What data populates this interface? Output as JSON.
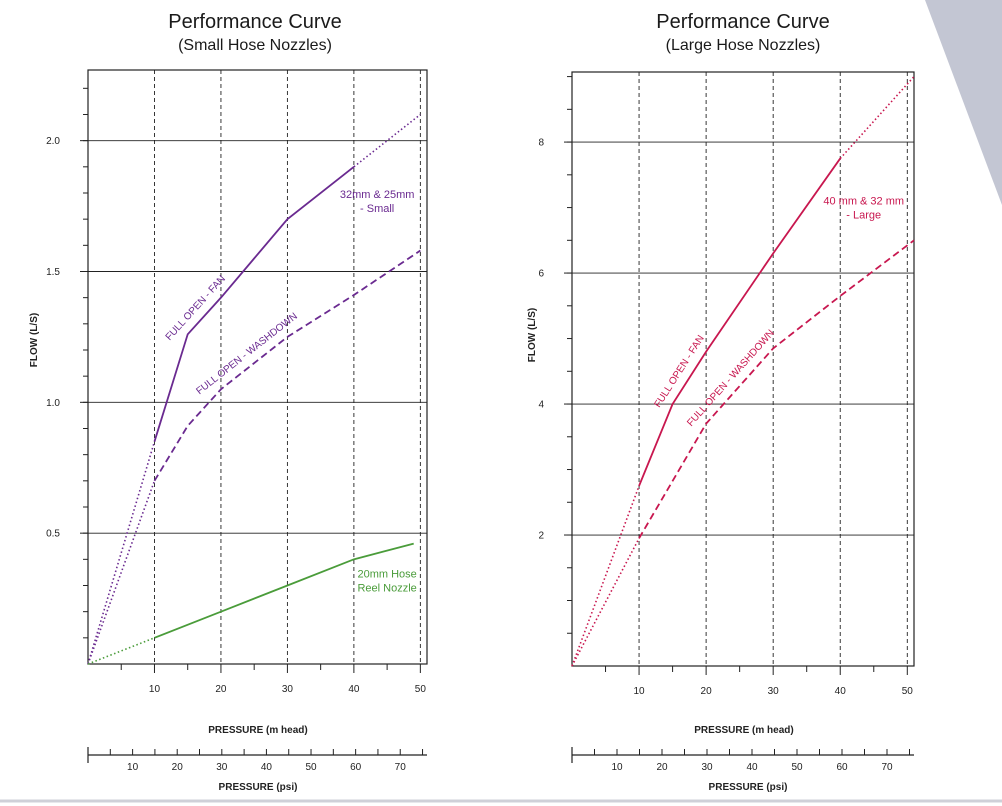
{
  "colors": {
    "purple": "#6a2a90",
    "green": "#4a9c3a",
    "crimson": "#c8174f",
    "corner": "#c3c6d3"
  },
  "chart_data": [
    {
      "type": "line",
      "title": "Performance Curve",
      "subtitle": "(Small Hose Nozzles)",
      "xlabel": "PRESSURE (m head)",
      "ylabel": "FLOW (L/S)",
      "xlim": [
        0,
        51
      ],
      "ylim": [
        0,
        2.27
      ],
      "x_ticks": [
        10,
        20,
        30,
        40,
        50
      ],
      "x_tick_labels": [
        "10",
        "20",
        "30",
        "40",
        "50"
      ],
      "y_ticks": [
        0.5,
        1.0,
        1.5,
        2.0
      ],
      "y_tick_labels": [
        "0.5",
        "1.0",
        "1.5",
        "2.0"
      ],
      "y_minor_step": 0.1,
      "secondary_xlabel": "PRESSURE (psi)",
      "secondary_x_ticks": [
        10,
        20,
        30,
        40,
        50,
        60,
        70
      ],
      "secondary_x_tick_labels": [
        "10",
        "20",
        "30",
        "40",
        "50",
        "60",
        "70"
      ],
      "secondary_xlim": [
        0,
        76
      ],
      "grid": true,
      "series": [
        {
          "color": "purple",
          "style": "solid",
          "label_text": "FULL OPEN - FAN",
          "x": [
            10,
            15,
            20,
            30,
            40
          ],
          "y": [
            0.85,
            1.26,
            1.4,
            1.7,
            1.9
          ],
          "ext_before": {
            "x": [
              0,
              10
            ],
            "y": [
              0,
              0.85
            ]
          },
          "ext_after": {
            "x": [
              40,
              50
            ],
            "y": [
              1.9,
              2.1
            ]
          }
        },
        {
          "color": "purple",
          "style": "dashed",
          "label_text": "FULL OPEN - WASHDOWN",
          "x": [
            10,
            15,
            20,
            30,
            40,
            50
          ],
          "y": [
            0.7,
            0.91,
            1.05,
            1.25,
            1.41,
            1.58
          ],
          "ext_before": {
            "x": [
              0,
              10
            ],
            "y": [
              0,
              0.7
            ]
          }
        },
        {
          "color": "green",
          "style": "solid",
          "x": [
            10,
            20,
            30,
            40,
            49
          ],
          "y": [
            0.1,
            0.2,
            0.3,
            0.4,
            0.46
          ],
          "ext_before": {
            "x": [
              0,
              10
            ],
            "y": [
              0,
              0.1
            ]
          }
        }
      ],
      "annotations": [
        {
          "lines": [
            "32mm & 25mm",
            "- Small"
          ],
          "color": "purple",
          "x": 43.5,
          "y": 1.78
        },
        {
          "lines": [
            "20mm Hose",
            "Reel Nozzle"
          ],
          "color": "green",
          "x": 45,
          "y": 0.33
        }
      ]
    },
    {
      "type": "line",
      "title": "Performance Curve",
      "subtitle": "(Large Hose Nozzles)",
      "xlabel": "PRESSURE (m head)",
      "ylabel": "FLOW (L/S)",
      "xlim": [
        0,
        51
      ],
      "ylim": [
        0,
        9.07
      ],
      "x_ticks": [
        10,
        20,
        30,
        40,
        50
      ],
      "x_tick_labels": [
        "10",
        "20",
        "30",
        "40",
        "50"
      ],
      "y_ticks": [
        2,
        4,
        6,
        8
      ],
      "y_tick_labels": [
        "2",
        "4",
        "6",
        "8"
      ],
      "y_minor_step": 0.5,
      "secondary_xlabel": "PRESSURE (psi)",
      "secondary_x_ticks": [
        10,
        20,
        30,
        40,
        50,
        60,
        70
      ],
      "secondary_x_tick_labels": [
        "10",
        "20",
        "30",
        "40",
        "50",
        "60",
        "70"
      ],
      "secondary_xlim": [
        0,
        76
      ],
      "grid": true,
      "series": [
        {
          "color": "crimson",
          "style": "solid",
          "label_text": "FULL OPEN - FAN",
          "x": [
            10,
            15,
            20,
            30,
            40
          ],
          "y": [
            2.75,
            4.0,
            4.8,
            6.3,
            7.75
          ],
          "ext_before": {
            "x": [
              0,
              10
            ],
            "y": [
              0,
              2.75
            ]
          },
          "ext_after": {
            "x": [
              40,
              51
            ],
            "y": [
              7.75,
              9.0
            ]
          }
        },
        {
          "color": "crimson",
          "style": "dashed",
          "label_text": "FULL OPEN - WASHDOWN",
          "x": [
            10,
            20,
            30,
            40,
            51
          ],
          "y": [
            1.95,
            3.7,
            4.85,
            5.65,
            6.5
          ],
          "ext_before": {
            "x": [
              0,
              10
            ],
            "y": [
              0,
              1.95
            ]
          }
        }
      ],
      "annotations": [
        {
          "lines": [
            "40 mm & 32 mm",
            "- Large"
          ],
          "color": "crimson",
          "x": 43.5,
          "y": 7.05
        }
      ]
    }
  ]
}
